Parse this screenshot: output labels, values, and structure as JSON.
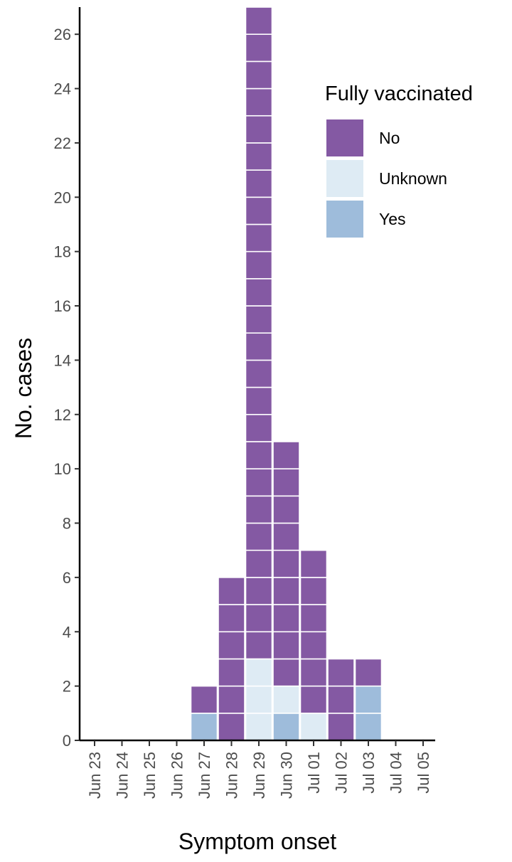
{
  "chart_data": {
    "type": "bar",
    "subtype": "stacked unit-square (waffle) bar",
    "xlabel": "Symptom onset",
    "ylabel": "No. cases",
    "categories": [
      "Jun 23",
      "Jun 24",
      "Jun 25",
      "Jun 26",
      "Jun 27",
      "Jun 28",
      "Jun 29",
      "Jun 30",
      "Jul 01",
      "Jul 02",
      "Jul 03",
      "Jul 04",
      "Jul 05"
    ],
    "stack_order": [
      "Yes",
      "Unknown",
      "No"
    ],
    "series": [
      {
        "name": "No",
        "color": "#8459a3",
        "values": [
          0,
          0,
          0,
          0,
          1,
          6,
          24,
          9,
          6,
          3,
          1,
          0,
          0
        ]
      },
      {
        "name": "Unknown",
        "color": "#deebf4",
        "values": [
          0,
          0,
          0,
          0,
          0,
          0,
          3,
          1,
          1,
          0,
          0,
          0,
          0
        ]
      },
      {
        "name": "Yes",
        "color": "#9ebcdb",
        "values": [
          0,
          0,
          0,
          0,
          1,
          0,
          0,
          1,
          0,
          0,
          2,
          0,
          0
        ]
      }
    ],
    "ylim": [
      0,
      27
    ],
    "yticks": [
      0,
      2,
      4,
      6,
      8,
      10,
      12,
      14,
      16,
      18,
      20,
      22,
      24,
      26
    ],
    "grid": false,
    "legend": {
      "title": "Fully vaccinated",
      "position": "top-right",
      "entries": [
        "No",
        "Unknown",
        "Yes"
      ]
    }
  }
}
